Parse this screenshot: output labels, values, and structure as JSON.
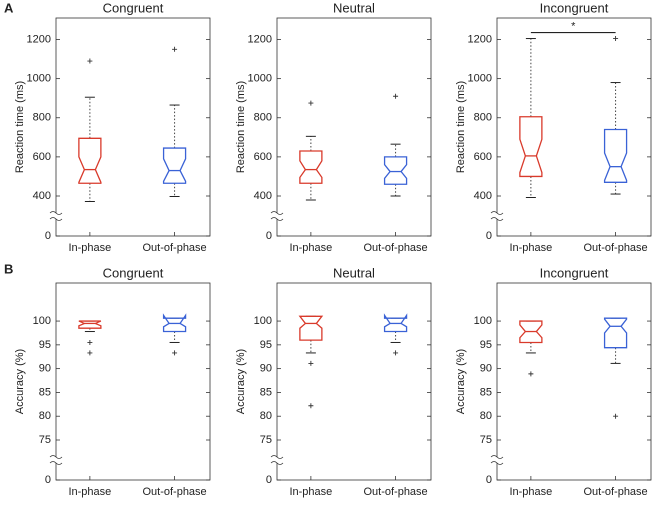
{
  "panel_labels": [
    "A",
    "B"
  ],
  "chart_data": [
    {
      "type": "box",
      "title": "Congruent",
      "ylabel": "Reaction time (ms)",
      "categories": [
        "In-phase",
        "Out-of-phase"
      ],
      "ylim": [
        0,
        1310
      ],
      "yticks": [
        0,
        400,
        600,
        800,
        1000,
        1200
      ],
      "axis_break": [
        0,
        400
      ],
      "boxes": [
        {
          "color": "#d93a2b",
          "min": 345,
          "q1": 465,
          "median": 535,
          "q3": 695,
          "max": 905,
          "notch": [
            470,
            600
          ],
          "outliers": [
            1090
          ]
        },
        {
          "color": "#3a62d6",
          "min": 395,
          "q1": 465,
          "median": 530,
          "q3": 645,
          "max": 865,
          "notch": [
            475,
            590
          ],
          "outliers": [
            1150
          ]
        }
      ]
    },
    {
      "type": "box",
      "title": "Neutral",
      "ylabel": "Reaction time (ms)",
      "categories": [
        "In-phase",
        "Out-of-phase"
      ],
      "ylim": [
        0,
        1310
      ],
      "yticks": [
        0,
        400,
        600,
        800,
        1000,
        1200
      ],
      "axis_break": [
        0,
        400
      ],
      "boxes": [
        {
          "color": "#d93a2b",
          "min": 360,
          "q1": 465,
          "median": 535,
          "q3": 630,
          "max": 705,
          "notch": [
            495,
            580
          ],
          "outliers": [
            875
          ]
        },
        {
          "color": "#3a62d6",
          "min": 400,
          "q1": 460,
          "median": 525,
          "q3": 600,
          "max": 665,
          "notch": [
            490,
            560
          ],
          "outliers": [
            910
          ]
        }
      ]
    },
    {
      "type": "box",
      "title": "Incongruent",
      "ylabel": "Reaction time (ms)",
      "categories": [
        "In-phase",
        "Out-of-phase"
      ],
      "ylim": [
        0,
        1310
      ],
      "yticks": [
        0,
        400,
        600,
        800,
        1000,
        1200
      ],
      "axis_break": [
        0,
        400
      ],
      "annotation": "*",
      "boxes": [
        {
          "color": "#d93a2b",
          "min": 385,
          "q1": 500,
          "median": 605,
          "q3": 805,
          "max": 1205,
          "notch": [
            520,
            690
          ],
          "outliers": []
        },
        {
          "color": "#3a62d6",
          "min": 410,
          "q1": 470,
          "median": 550,
          "q3": 740,
          "max": 980,
          "notch": [
            480,
            620
          ],
          "outliers": [
            1205
          ]
        }
      ]
    },
    {
      "type": "box",
      "title": "Congruent",
      "ylabel": "Accuracy (%)",
      "categories": [
        "In-phase",
        "Out-of-phase"
      ],
      "ylim": [
        0,
        108
      ],
      "yticks": [
        0,
        75,
        80,
        85,
        90,
        95,
        100
      ],
      "axis_break": [
        0,
        75
      ],
      "boxes": [
        {
          "color": "#d93a2b",
          "min": 97.8,
          "q1": 98.5,
          "median": 99.5,
          "q3": 100,
          "max": 100,
          "notch": [
            99,
            100
          ],
          "outliers": [
            95.5,
            93.3
          ]
        },
        {
          "color": "#3a62d6",
          "min": 95.5,
          "q1": 97.8,
          "median": 99.5,
          "q3": 100.6,
          "max": 100.6,
          "notch": [
            98.8,
            101.2
          ],
          "outliers": [
            93.3
          ]
        }
      ]
    },
    {
      "type": "box",
      "title": "Neutral",
      "ylabel": "Accuracy (%)",
      "categories": [
        "In-phase",
        "Out-of-phase"
      ],
      "ylim": [
        0,
        108
      ],
      "yticks": [
        0,
        75,
        80,
        85,
        90,
        95,
        100
      ],
      "axis_break": [
        0,
        75
      ],
      "boxes": [
        {
          "color": "#d93a2b",
          "min": 93.3,
          "q1": 96,
          "median": 99.5,
          "q3": 101,
          "max": 101,
          "notch": [
            98.5,
            101
          ],
          "outliers": [
            91.1,
            82.2
          ]
        },
        {
          "color": "#3a62d6",
          "min": 95.5,
          "q1": 97.8,
          "median": 99.5,
          "q3": 100.6,
          "max": 100.6,
          "notch": [
            98.8,
            101.2
          ],
          "outliers": [
            93.3
          ]
        }
      ]
    },
    {
      "type": "box",
      "title": "Incongruent",
      "ylabel": "Accuracy (%)",
      "categories": [
        "In-phase",
        "Out-of-phase"
      ],
      "ylim": [
        0,
        108
      ],
      "yticks": [
        0,
        75,
        80,
        85,
        90,
        95,
        100
      ],
      "axis_break": [
        0,
        75
      ],
      "boxes": [
        {
          "color": "#d93a2b",
          "min": 93.3,
          "q1": 95.5,
          "median": 97.8,
          "q3": 100,
          "max": 100,
          "notch": [
            96.5,
            99.2
          ],
          "outliers": [
            88.9
          ]
        },
        {
          "color": "#3a62d6",
          "min": 91.1,
          "q1": 94.4,
          "median": 98.9,
          "q3": 100.6,
          "max": 100.6,
          "notch": [
            97.5,
            100.4
          ],
          "outliers": [
            80
          ]
        }
      ]
    }
  ]
}
